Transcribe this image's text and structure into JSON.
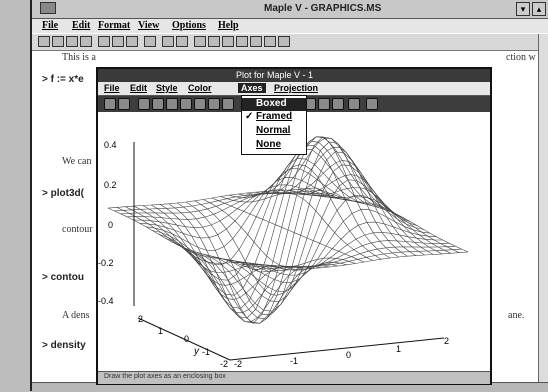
{
  "app": {
    "title": "Maple V - GRAPHICS.MS",
    "menu": [
      "File",
      "Edit",
      "Format",
      "View",
      "Options",
      "Help"
    ]
  },
  "document": {
    "lines": [
      {
        "kind": "text",
        "text": "This is a",
        "tail": "ction w"
      },
      {
        "kind": "cmd",
        "text": "> f := x*e"
      },
      {
        "kind": "text",
        "text": "We can"
      },
      {
        "kind": "cmd",
        "text": "> plot3d("
      },
      {
        "kind": "text",
        "text": "contour"
      },
      {
        "kind": "cmd",
        "text": "> contou"
      },
      {
        "kind": "text",
        "text": "A dens",
        "tail": "ane."
      },
      {
        "kind": "cmd",
        "text": "> density"
      }
    ]
  },
  "plot_window": {
    "title": "Plot for Maple V - 1",
    "menu": [
      "File",
      "Edit",
      "Style",
      "Color",
      "Axes",
      "Projection"
    ],
    "status": "Draw the plot axes as an enclosing box"
  },
  "axes_menu": {
    "items": [
      {
        "label": "Boxed",
        "checked": false,
        "highlighted": true
      },
      {
        "label": "Framed",
        "checked": true,
        "highlighted": false
      },
      {
        "label": "Normal",
        "checked": false,
        "highlighted": false
      },
      {
        "label": "None",
        "checked": false,
        "highlighted": false
      }
    ],
    "check_mark": "✓"
  },
  "plot_axes": {
    "z_ticks": [
      "0.4",
      "0.2",
      "0",
      "-0.2",
      "-0.4"
    ],
    "y_ticks": [
      "2",
      "1",
      "0",
      "-1",
      "-2"
    ],
    "y_label": "y",
    "x_ticks": [
      "-2",
      "-1",
      "0",
      "1",
      "2"
    ]
  }
}
